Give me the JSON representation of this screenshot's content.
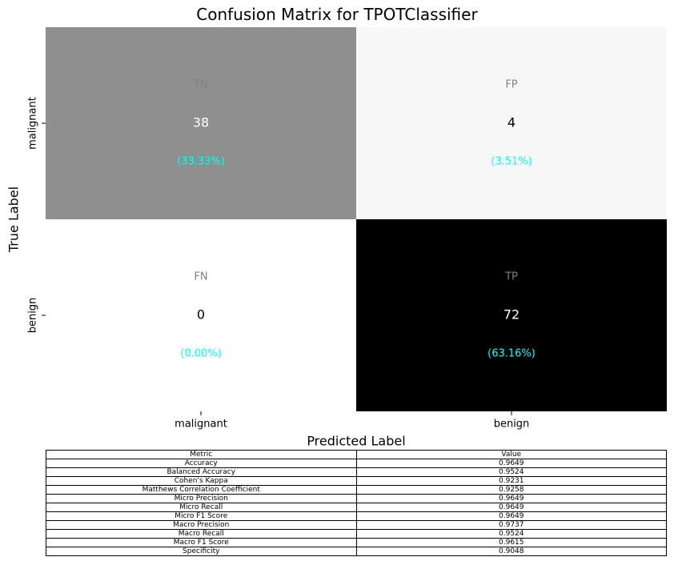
{
  "chart_data": {
    "type": "heatmap",
    "title": "Confusion Matrix for TPOTClassifier",
    "xlabel": "Predicted Label",
    "ylabel": "True Label",
    "x_categories": [
      "malignant",
      "benign"
    ],
    "y_categories": [
      "malignant",
      "benign"
    ],
    "cells": [
      [
        {
          "tag": "TN",
          "count": "38",
          "percent": "(33.33%)",
          "value": 38,
          "color": "#8f8f8f"
        },
        {
          "tag": "FP",
          "count": "4",
          "percent": "(3.51%)",
          "value": 4,
          "color": "#f7f7f7"
        }
      ],
      [
        {
          "tag": "FN",
          "count": "0",
          "percent": "(0.00%)",
          "value": 0,
          "color": "#ffffff"
        },
        {
          "tag": "TP",
          "count": "72",
          "percent": "(63.16%)",
          "value": 72,
          "color": "#000000"
        }
      ]
    ],
    "colorscale": "Greys",
    "vmin": 0,
    "vmax": 72,
    "tag_color": "#808080",
    "percent_color": "#00ffff"
  },
  "metrics_table": {
    "header": [
      "Metric",
      "Value"
    ],
    "rows": [
      [
        "Accuracy",
        "0.9649"
      ],
      [
        "Balanced Accuracy",
        "0.9524"
      ],
      [
        "Cohen's Kappa",
        "0.9231"
      ],
      [
        "Matthews Correlation Coefficient",
        "0.9258"
      ],
      [
        "Micro Precision",
        "0.9649"
      ],
      [
        "Micro Recall",
        "0.9649"
      ],
      [
        "Micro F1 Score",
        "0.9649"
      ],
      [
        "Macro Precision",
        "0.9737"
      ],
      [
        "Macro Recall",
        "0.9524"
      ],
      [
        "Macro F1 Score",
        "0.9615"
      ],
      [
        "Specificity",
        "0.9048"
      ]
    ]
  }
}
